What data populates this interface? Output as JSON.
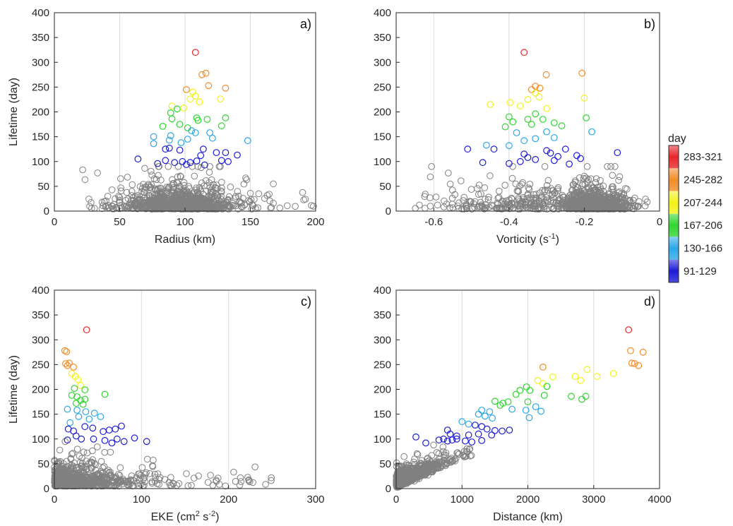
{
  "chart_data": [
    {
      "type": "scatter",
      "panel_label": "a)",
      "xlabel": "Radius (km)",
      "ylabel": "Lifetime (day)",
      "xlim": [
        0,
        200
      ],
      "ylim": [
        0,
        400
      ],
      "xticks": [
        "0",
        "50",
        "100",
        "150",
        "200"
      ],
      "yticks": [
        "0",
        "50",
        "100",
        "150",
        "200",
        "250",
        "300",
        "350",
        "400"
      ],
      "grid_x": [
        50,
        100,
        150
      ],
      "marker": "open-circle",
      "points": [
        {
          "x": 108,
          "y": 320
        },
        {
          "x": 116,
          "y": 278
        },
        {
          "x": 113,
          "y": 275
        },
        {
          "x": 118,
          "y": 253
        },
        {
          "x": 131,
          "y": 248
        },
        {
          "x": 101,
          "y": 245
        },
        {
          "x": 127,
          "y": 226
        },
        {
          "x": 106,
          "y": 240
        },
        {
          "x": 108,
          "y": 232
        },
        {
          "x": 104,
          "y": 226
        },
        {
          "x": 111,
          "y": 220
        },
        {
          "x": 90,
          "y": 212
        },
        {
          "x": 94,
          "y": 206
        },
        {
          "x": 89,
          "y": 198
        },
        {
          "x": 99,
          "y": 208
        },
        {
          "x": 90,
          "y": 186
        },
        {
          "x": 109,
          "y": 188
        },
        {
          "x": 110,
          "y": 183
        },
        {
          "x": 117,
          "y": 185
        },
        {
          "x": 131,
          "y": 188
        },
        {
          "x": 83,
          "y": 171
        },
        {
          "x": 96,
          "y": 175
        },
        {
          "x": 102,
          "y": 168
        },
        {
          "x": 128,
          "y": 172
        },
        {
          "x": 76,
          "y": 150
        },
        {
          "x": 89,
          "y": 152
        },
        {
          "x": 105,
          "y": 162
        },
        {
          "x": 108,
          "y": 158
        },
        {
          "x": 119,
          "y": 158
        },
        {
          "x": 88,
          "y": 143
        },
        {
          "x": 102,
          "y": 145
        },
        {
          "x": 121,
          "y": 147
        },
        {
          "x": 76,
          "y": 136
        },
        {
          "x": 97,
          "y": 138
        },
        {
          "x": 148,
          "y": 142
        },
        {
          "x": 85,
          "y": 125
        },
        {
          "x": 88,
          "y": 127
        },
        {
          "x": 96,
          "y": 123
        },
        {
          "x": 114,
          "y": 125
        },
        {
          "x": 124,
          "y": 118
        },
        {
          "x": 131,
          "y": 118
        },
        {
          "x": 112,
          "y": 112
        },
        {
          "x": 140,
          "y": 113
        },
        {
          "x": 64,
          "y": 105
        },
        {
          "x": 79,
          "y": 96
        },
        {
          "x": 85,
          "y": 102
        },
        {
          "x": 92,
          "y": 98
        },
        {
          "x": 98,
          "y": 100
        },
        {
          "x": 101,
          "y": 94
        },
        {
          "x": 104,
          "y": 98
        },
        {
          "x": 109,
          "y": 101
        },
        {
          "x": 115,
          "y": 93
        },
        {
          "x": 128,
          "y": 102
        },
        {
          "x": 133,
          "y": 100
        }
      ],
      "background_series": {
        "color": "#808080",
        "seed": 11,
        "shape": "radius",
        "count": 900
      },
      "colored_by": "Lifetime (day)"
    },
    {
      "type": "scatter",
      "panel_label": "b)",
      "xlabel": "Vorticity (s-1)",
      "xlabel_parts": [
        "Vorticity (s",
        "-1",
        ")"
      ],
      "ylabel": "",
      "xlim": [
        -0.7,
        0
      ],
      "ylim": [
        0,
        400
      ],
      "xticks": [
        "-0.6",
        "-0.4",
        "-0.2",
        "0"
      ],
      "xtick_values": [
        -0.6,
        -0.4,
        -0.2,
        0
      ],
      "yticks": [
        "0",
        "50",
        "100",
        "150",
        "200",
        "250",
        "300",
        "350",
        "400"
      ],
      "grid_x": [
        -0.6,
        -0.4,
        -0.2
      ],
      "marker": "open-circle",
      "points": [
        {
          "x": -0.36,
          "y": 320
        },
        {
          "x": -0.301,
          "y": 275
        },
        {
          "x": -0.206,
          "y": 278
        },
        {
          "x": -0.33,
          "y": 252
        },
        {
          "x": -0.318,
          "y": 248
        },
        {
          "x": -0.34,
          "y": 245
        },
        {
          "x": -0.45,
          "y": 215
        },
        {
          "x": -0.397,
          "y": 219
        },
        {
          "x": -0.33,
          "y": 238
        },
        {
          "x": -0.32,
          "y": 230
        },
        {
          "x": -0.35,
          "y": 225
        },
        {
          "x": -0.37,
          "y": 212
        },
        {
          "x": -0.3,
          "y": 207
        },
        {
          "x": -0.2,
          "y": 228
        },
        {
          "x": -0.33,
          "y": 196
        },
        {
          "x": -0.4,
          "y": 190
        },
        {
          "x": -0.39,
          "y": 180
        },
        {
          "x": -0.35,
          "y": 185
        },
        {
          "x": -0.28,
          "y": 178
        },
        {
          "x": -0.34,
          "y": 175
        },
        {
          "x": -0.41,
          "y": 170
        },
        {
          "x": -0.31,
          "y": 185
        },
        {
          "x": -0.195,
          "y": 188
        },
        {
          "x": -0.26,
          "y": 172
        },
        {
          "x": -0.38,
          "y": 158
        },
        {
          "x": -0.3,
          "y": 160
        },
        {
          "x": -0.33,
          "y": 146
        },
        {
          "x": -0.36,
          "y": 142
        },
        {
          "x": -0.18,
          "y": 160
        },
        {
          "x": -0.28,
          "y": 148
        },
        {
          "x": -0.4,
          "y": 132
        },
        {
          "x": -0.46,
          "y": 133
        },
        {
          "x": -0.51,
          "y": 125
        },
        {
          "x": -0.44,
          "y": 125
        },
        {
          "x": -0.3,
          "y": 122
        },
        {
          "x": -0.25,
          "y": 125
        },
        {
          "x": -0.22,
          "y": 112
        },
        {
          "x": -0.112,
          "y": 118
        },
        {
          "x": -0.36,
          "y": 115
        },
        {
          "x": -0.29,
          "y": 117
        },
        {
          "x": -0.47,
          "y": 98
        },
        {
          "x": -0.4,
          "y": 96
        },
        {
          "x": -0.37,
          "y": 100
        },
        {
          "x": -0.33,
          "y": 104
        },
        {
          "x": -0.28,
          "y": 102
        },
        {
          "x": -0.24,
          "y": 95
        },
        {
          "x": -0.21,
          "y": 106
        },
        {
          "x": -0.35,
          "y": 108
        },
        {
          "x": -0.27,
          "y": 110
        }
      ],
      "background_series": {
        "color": "#808080",
        "seed": 23,
        "shape": "vorticity",
        "count": 900
      },
      "colored_by": "Lifetime (day)"
    },
    {
      "type": "scatter",
      "panel_label": "c)",
      "xlabel": "EKE (cm2 s-2)",
      "xlabel_parts": [
        "EKE (cm",
        "2",
        " s",
        "-2",
        ")"
      ],
      "ylabel": "Lifetime (day)",
      "xlim": [
        0,
        300
      ],
      "ylim": [
        0,
        400
      ],
      "xticks": [
        "0",
        "100",
        "200",
        "300"
      ],
      "yticks": [
        "0",
        "50",
        "100",
        "150",
        "200",
        "250",
        "300",
        "350",
        "400"
      ],
      "grid_x": [
        100,
        200
      ],
      "marker": "open-circle",
      "points": [
        {
          "x": 37,
          "y": 320
        },
        {
          "x": 12,
          "y": 278
        },
        {
          "x": 14,
          "y": 276
        },
        {
          "x": 13,
          "y": 252
        },
        {
          "x": 17,
          "y": 253
        },
        {
          "x": 15,
          "y": 248
        },
        {
          "x": 22,
          "y": 245
        },
        {
          "x": 20,
          "y": 232
        },
        {
          "x": 24,
          "y": 226
        },
        {
          "x": 27,
          "y": 220
        },
        {
          "x": 30,
          "y": 208
        },
        {
          "x": 23,
          "y": 202
        },
        {
          "x": 35,
          "y": 199
        },
        {
          "x": 20,
          "y": 188
        },
        {
          "x": 26,
          "y": 185
        },
        {
          "x": 30,
          "y": 178
        },
        {
          "x": 25,
          "y": 172
        },
        {
          "x": 33,
          "y": 170
        },
        {
          "x": 35,
          "y": 180
        },
        {
          "x": 58,
          "y": 190
        },
        {
          "x": 15,
          "y": 160
        },
        {
          "x": 26,
          "y": 158
        },
        {
          "x": 36,
          "y": 155
        },
        {
          "x": 46,
          "y": 152
        },
        {
          "x": 53,
          "y": 145
        },
        {
          "x": 28,
          "y": 145
        },
        {
          "x": 40,
          "y": 140
        },
        {
          "x": 18,
          "y": 133
        },
        {
          "x": 35,
          "y": 125
        },
        {
          "x": 44,
          "y": 122
        },
        {
          "x": 16,
          "y": 120
        },
        {
          "x": 22,
          "y": 116
        },
        {
          "x": 56,
          "y": 115
        },
        {
          "x": 63,
          "y": 118
        },
        {
          "x": 70,
          "y": 120
        },
        {
          "x": 77,
          "y": 126
        },
        {
          "x": 15,
          "y": 98
        },
        {
          "x": 25,
          "y": 106
        },
        {
          "x": 31,
          "y": 100
        },
        {
          "x": 45,
          "y": 100
        },
        {
          "x": 58,
          "y": 97
        },
        {
          "x": 66,
          "y": 92
        },
        {
          "x": 72,
          "y": 100
        },
        {
          "x": 80,
          "y": 95
        },
        {
          "x": 92,
          "y": 102
        },
        {
          "x": 106,
          "y": 95
        }
      ],
      "background_series": {
        "color": "#808080",
        "seed": 37,
        "shape": "eke",
        "count": 900
      },
      "colored_by": "Lifetime (day)"
    },
    {
      "type": "scatter",
      "panel_label": "d)",
      "xlabel": "Distance (km)",
      "ylabel": "",
      "xlim": [
        0,
        4000
      ],
      "ylim": [
        0,
        400
      ],
      "xticks": [
        "0",
        "1000",
        "2000",
        "3000",
        "4000"
      ],
      "yticks": [
        "0",
        "50",
        "100",
        "150",
        "200",
        "250",
        "300",
        "350",
        "400"
      ],
      "grid_x": [
        1000,
        2000,
        3000
      ],
      "marker": "open-circle",
      "points": [
        {
          "x": 3530,
          "y": 320
        },
        {
          "x": 3560,
          "y": 278
        },
        {
          "x": 3750,
          "y": 275
        },
        {
          "x": 3580,
          "y": 253
        },
        {
          "x": 3620,
          "y": 252
        },
        {
          "x": 3680,
          "y": 248
        },
        {
          "x": 2230,
          "y": 245
        },
        {
          "x": 2900,
          "y": 240
        },
        {
          "x": 3300,
          "y": 232
        },
        {
          "x": 3050,
          "y": 226
        },
        {
          "x": 2720,
          "y": 226
        },
        {
          "x": 2380,
          "y": 225
        },
        {
          "x": 2150,
          "y": 218
        },
        {
          "x": 2230,
          "y": 212
        },
        {
          "x": 2290,
          "y": 206
        },
        {
          "x": 2800,
          "y": 218
        },
        {
          "x": 1980,
          "y": 205
        },
        {
          "x": 2030,
          "y": 198
        },
        {
          "x": 1880,
          "y": 198
        },
        {
          "x": 1820,
          "y": 190
        },
        {
          "x": 2880,
          "y": 186
        },
        {
          "x": 2660,
          "y": 186
        },
        {
          "x": 2250,
          "y": 188
        },
        {
          "x": 2820,
          "y": 180
        },
        {
          "x": 1500,
          "y": 176
        },
        {
          "x": 1620,
          "y": 172
        },
        {
          "x": 1700,
          "y": 175
        },
        {
          "x": 1580,
          "y": 168
        },
        {
          "x": 2000,
          "y": 175
        },
        {
          "x": 2120,
          "y": 165
        },
        {
          "x": 1300,
          "y": 158
        },
        {
          "x": 1420,
          "y": 155
        },
        {
          "x": 1760,
          "y": 160
        },
        {
          "x": 1970,
          "y": 158
        },
        {
          "x": 2200,
          "y": 156
        },
        {
          "x": 1250,
          "y": 150
        },
        {
          "x": 1350,
          "y": 146
        },
        {
          "x": 1460,
          "y": 142
        },
        {
          "x": 2020,
          "y": 143
        },
        {
          "x": 1000,
          "y": 135
        },
        {
          "x": 1100,
          "y": 130
        },
        {
          "x": 1200,
          "y": 128
        },
        {
          "x": 1300,
          "y": 125
        },
        {
          "x": 1380,
          "y": 120
        },
        {
          "x": 1500,
          "y": 117
        },
        {
          "x": 1610,
          "y": 116
        },
        {
          "x": 1720,
          "y": 118
        },
        {
          "x": 780,
          "y": 118
        },
        {
          "x": 820,
          "y": 110
        },
        {
          "x": 920,
          "y": 106
        },
        {
          "x": 1100,
          "y": 108
        },
        {
          "x": 1250,
          "y": 110
        },
        {
          "x": 1450,
          "y": 108
        },
        {
          "x": 300,
          "y": 104
        },
        {
          "x": 650,
          "y": 98
        },
        {
          "x": 720,
          "y": 100
        },
        {
          "x": 780,
          "y": 96
        },
        {
          "x": 850,
          "y": 98
        },
        {
          "x": 920,
          "y": 100
        },
        {
          "x": 1050,
          "y": 96
        },
        {
          "x": 1150,
          "y": 94
        },
        {
          "x": 1300,
          "y": 97
        },
        {
          "x": 450,
          "y": 92
        }
      ],
      "background_series": {
        "color": "#808080",
        "seed": 53,
        "shape": "distance",
        "count": 900
      },
      "colored_by": "Lifetime (day)"
    }
  ],
  "colorbar": {
    "title": "day",
    "ranges": [
      {
        "label": "283-321",
        "min": 283,
        "max": 321,
        "color": "#e8262a"
      },
      {
        "label": "245-282",
        "min": 245,
        "max": 282,
        "color": "#f28c28"
      },
      {
        "label": "207-244",
        "min": 207,
        "max": 244,
        "color": "#f2f21a"
      },
      {
        "label": "167-206",
        "min": 167,
        "max": 206,
        "color": "#2fd62f"
      },
      {
        "label": "130-166",
        "min": 130,
        "max": 166,
        "color": "#2aa7e8"
      },
      {
        "label": "91-129",
        "min": 91,
        "max": 129,
        "color": "#1b1bd6"
      }
    ]
  }
}
